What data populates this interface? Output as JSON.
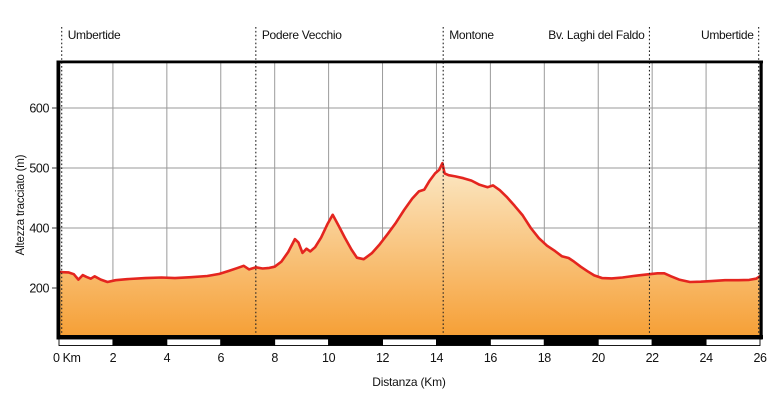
{
  "chart_data": {
    "type": "area",
    "x_axis": {
      "label": "Distanza (Km)",
      "min": 0,
      "max": 26,
      "tick_step": 2,
      "first_tick_label": "0 Km",
      "tick_labels": [
        "0 Km",
        "2",
        "4",
        "6",
        "8",
        "10",
        "12",
        "14",
        "16",
        "18",
        "20",
        "22",
        "24",
        "26"
      ]
    },
    "y_axis": {
      "label": "Altezza tracciato (m)",
      "tick_labels": [
        "600",
        "500",
        "400",
        "200"
      ],
      "tick_values_m": [
        600,
        500,
        400,
        200
      ],
      "note": "gridlines evenly spaced; scale compressed below 400 m"
    },
    "waypoints": [
      {
        "name": "Umbertide",
        "km": 0.1,
        "align": "left"
      },
      {
        "name": "Podere Vecchio",
        "km": 7.3,
        "align": "left"
      },
      {
        "name": "Montone",
        "km": 14.25,
        "align": "left"
      },
      {
        "name": "Bv. Laghi del Faldo",
        "km": 21.9,
        "align": "right"
      },
      {
        "name": "Umbertide",
        "km": 25.95,
        "align": "right"
      }
    ],
    "series": [
      {
        "name": "Altezza tracciato",
        "points_km_m": [
          [
            0,
            253
          ],
          [
            0.35,
            252
          ],
          [
            0.55,
            246
          ],
          [
            0.72,
            228
          ],
          [
            0.88,
            243
          ],
          [
            1.02,
            237
          ],
          [
            1.18,
            231
          ],
          [
            1.32,
            239
          ],
          [
            1.55,
            228
          ],
          [
            1.8,
            220
          ],
          [
            2.1,
            226
          ],
          [
            2.6,
            230
          ],
          [
            3.2,
            233
          ],
          [
            3.8,
            235
          ],
          [
            4.3,
            233
          ],
          [
            4.9,
            236
          ],
          [
            5.5,
            240
          ],
          [
            5.95,
            247
          ],
          [
            6.3,
            257
          ],
          [
            6.6,
            266
          ],
          [
            6.85,
            274
          ],
          [
            7.05,
            262
          ],
          [
            7.3,
            269
          ],
          [
            7.55,
            265
          ],
          [
            7.8,
            267
          ],
          [
            8.0,
            271
          ],
          [
            8.25,
            288
          ],
          [
            8.5,
            320
          ],
          [
            8.75,
            363
          ],
          [
            8.88,
            352
          ],
          [
            9.03,
            317
          ],
          [
            9.18,
            331
          ],
          [
            9.32,
            322
          ],
          [
            9.5,
            336
          ],
          [
            9.72,
            368
          ],
          [
            9.95,
            406
          ],
          [
            10.15,
            422
          ],
          [
            10.38,
            403
          ],
          [
            10.6,
            368
          ],
          [
            10.85,
            328
          ],
          [
            11.05,
            301
          ],
          [
            11.3,
            296
          ],
          [
            11.6,
            316
          ],
          [
            11.9,
            346
          ],
          [
            12.2,
            381
          ],
          [
            12.5,
            409
          ],
          [
            12.8,
            430
          ],
          [
            13.1,
            449
          ],
          [
            13.35,
            461
          ],
          [
            13.55,
            464
          ],
          [
            13.75,
            479
          ],
          [
            13.95,
            491
          ],
          [
            14.1,
            497
          ],
          [
            14.22,
            508
          ],
          [
            14.3,
            491
          ],
          [
            14.45,
            488
          ],
          [
            14.7,
            486
          ],
          [
            15.0,
            483
          ],
          [
            15.3,
            479
          ],
          [
            15.6,
            472
          ],
          [
            15.9,
            468
          ],
          [
            16.1,
            471
          ],
          [
            16.35,
            463
          ],
          [
            16.6,
            452
          ],
          [
            16.9,
            437
          ],
          [
            17.2,
            421
          ],
          [
            17.5,
            400
          ],
          [
            17.8,
            366
          ],
          [
            18.1,
            341
          ],
          [
            18.4,
            323
          ],
          [
            18.65,
            306
          ],
          [
            18.9,
            300
          ],
          [
            19.1,
            288
          ],
          [
            19.35,
            271
          ],
          [
            19.6,
            256
          ],
          [
            19.85,
            242
          ],
          [
            20.15,
            233
          ],
          [
            20.5,
            232
          ],
          [
            20.9,
            235
          ],
          [
            21.3,
            240
          ],
          [
            21.6,
            243
          ],
          [
            21.9,
            246
          ],
          [
            22.2,
            249
          ],
          [
            22.45,
            249
          ],
          [
            22.7,
            239
          ],
          [
            23.0,
            228
          ],
          [
            23.4,
            220
          ],
          [
            23.8,
            221
          ],
          [
            24.2,
            223
          ],
          [
            24.7,
            226
          ],
          [
            25.2,
            226
          ],
          [
            25.6,
            227
          ],
          [
            25.85,
            231
          ],
          [
            26,
            239
          ]
        ]
      }
    ],
    "distance_bar": {
      "start_km": 0,
      "end_km": 26,
      "segment_km": 2,
      "pattern": [
        "white",
        "black"
      ]
    },
    "colors": {
      "line": "#e4251f",
      "fill_top": "#fef7ea",
      "fill_mid": "#fbe3bb",
      "fill_bottom": "#f6a037",
      "grid": "#9a9a9a",
      "axis": "#000000",
      "text": "#111111"
    },
    "legend": {
      "visible": false
    },
    "grid": "on"
  }
}
